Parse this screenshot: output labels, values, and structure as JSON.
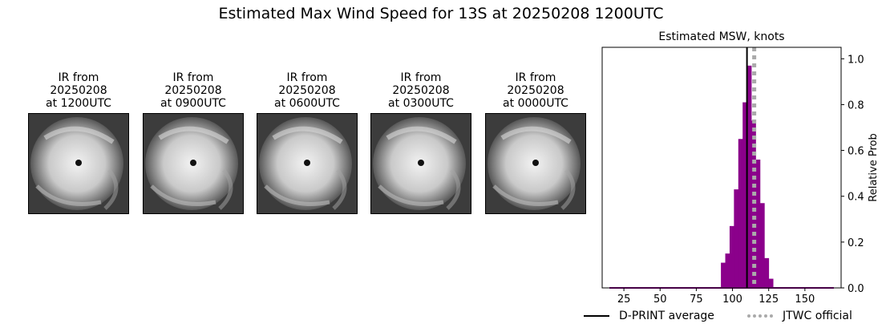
{
  "title": "Estimated Max Wind Speed for 13S at 20250208 1200UTC",
  "panels": [
    {
      "line1": "IR from",
      "line2": "20250208",
      "line3": "at 1200UTC"
    },
    {
      "line1": "IR from",
      "line2": "20250208",
      "line3": "at 0900UTC"
    },
    {
      "line1": "IR from",
      "line2": "20250208",
      "line3": "at 0600UTC"
    },
    {
      "line1": "IR from",
      "line2": "20250208",
      "line3": "at 0300UTC"
    },
    {
      "line1": "IR from",
      "line2": "20250208",
      "line3": "at 0000UTC"
    }
  ],
  "chart_data": {
    "type": "bar",
    "title": "Estimated MSW, knots",
    "xlabel": "",
    "ylabel": "Relative Prob",
    "xlim": [
      10,
      175
    ],
    "ylim": [
      0,
      1.05
    ],
    "xticks": [
      25,
      50,
      75,
      100,
      125,
      150
    ],
    "yticks": [
      0.0,
      0.2,
      0.4,
      0.6,
      0.8,
      1.0
    ],
    "ytick_labels": [
      "0.0",
      "0.2",
      "0.4",
      "0.6",
      "0.8",
      "1.0"
    ],
    "y_axis_side": "right",
    "bar_width": 3,
    "bar_color": "#8b008b",
    "bars": [
      {
        "x": 93.5,
        "value": 0.11
      },
      {
        "x": 96.5,
        "value": 0.15
      },
      {
        "x": 99.5,
        "value": 0.27
      },
      {
        "x": 102.5,
        "value": 0.43
      },
      {
        "x": 105.5,
        "value": 0.65
      },
      {
        "x": 108.5,
        "value": 0.81
      },
      {
        "x": 111.5,
        "value": 0.97
      },
      {
        "x": 114.5,
        "value": 0.73
      },
      {
        "x": 117.5,
        "value": 0.56
      },
      {
        "x": 120.5,
        "value": 0.37
      },
      {
        "x": 123.5,
        "value": 0.13
      },
      {
        "x": 126.5,
        "value": 0.04
      }
    ],
    "baseline_range": [
      15,
      170
    ],
    "lines": [
      {
        "name": "D-PRINT average",
        "x": 110,
        "style": "solid",
        "color": "#000000"
      },
      {
        "name": "JTWC official",
        "x": 115,
        "style": "dotted",
        "color": "#aaaaaa"
      }
    ],
    "legend_position": "bottom"
  }
}
